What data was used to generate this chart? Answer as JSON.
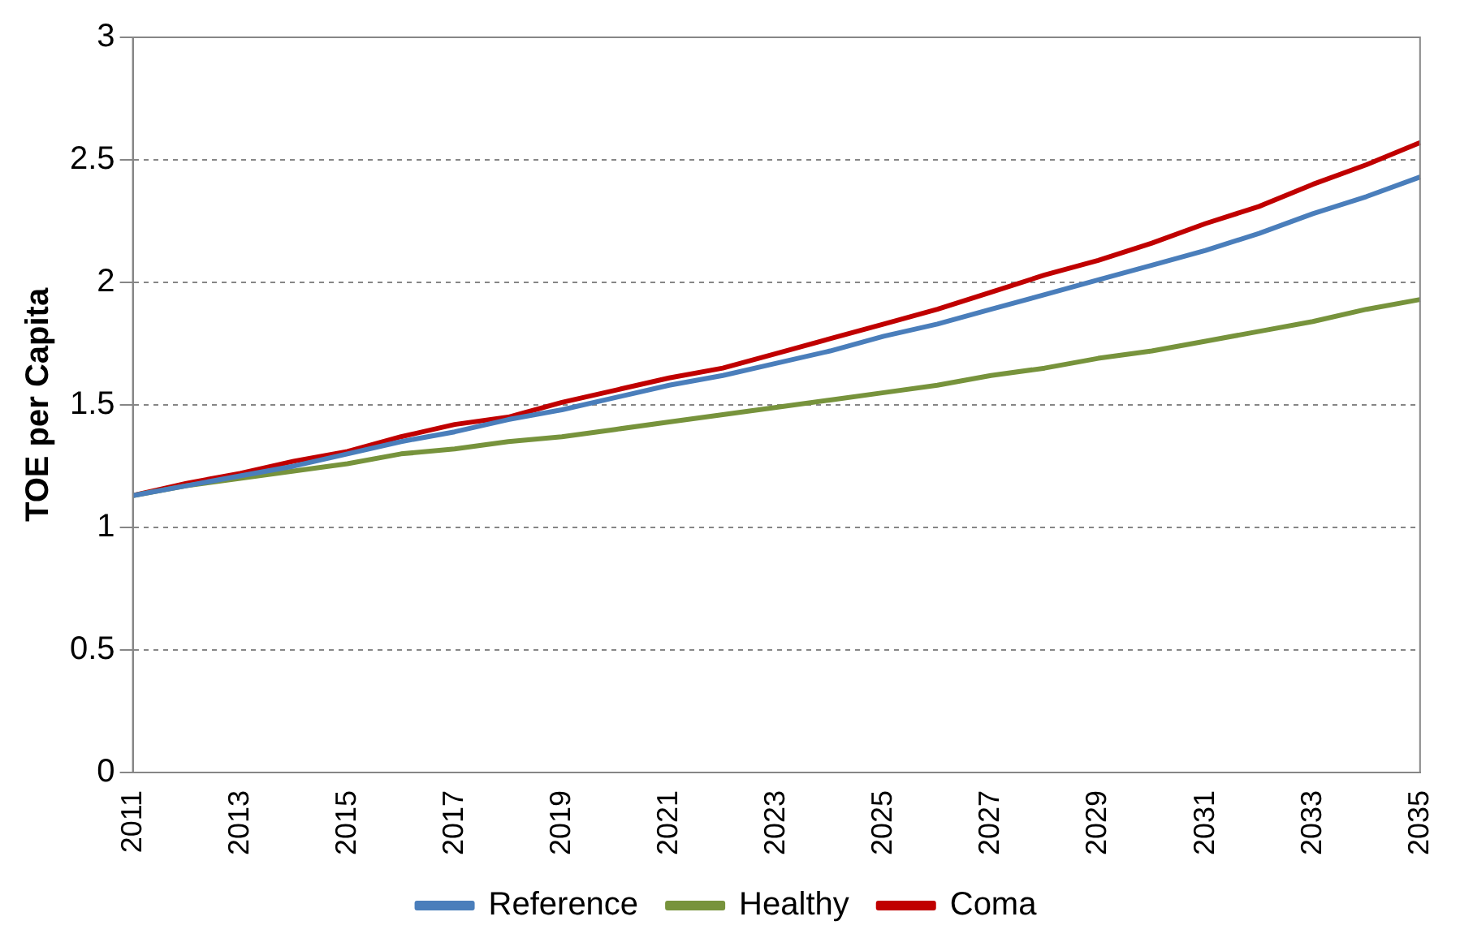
{
  "chart_data": {
    "type": "line",
    "ylabel": "TOE per Capita",
    "categories": [
      "2011",
      null,
      "2013",
      null,
      "2015",
      null,
      "2017",
      null,
      "2019",
      null,
      "2021",
      null,
      "2023",
      null,
      "2025",
      null,
      "2027",
      null,
      "2029",
      null,
      "2031",
      null,
      "2033",
      null,
      "2035"
    ],
    "series": [
      {
        "name": "Reference",
        "color": "#4a7ebb",
        "values": [
          1.13,
          1.17,
          1.21,
          1.25,
          1.3,
          1.35,
          1.39,
          1.44,
          1.48,
          1.53,
          1.58,
          1.62,
          1.67,
          1.72,
          1.78,
          1.83,
          1.89,
          1.95,
          2.01,
          2.07,
          2.13,
          2.2,
          2.28,
          2.35,
          2.43
        ]
      },
      {
        "name": "Healthy",
        "color": "#77933c",
        "values": [
          1.13,
          1.17,
          1.2,
          1.23,
          1.26,
          1.3,
          1.32,
          1.35,
          1.37,
          1.4,
          1.43,
          1.46,
          1.49,
          1.52,
          1.55,
          1.58,
          1.62,
          1.65,
          1.69,
          1.72,
          1.76,
          1.8,
          1.84,
          1.89,
          1.93
        ]
      },
      {
        "name": "Coma",
        "color": "#c00000",
        "values": [
          1.13,
          1.18,
          1.22,
          1.27,
          1.31,
          1.37,
          1.42,
          1.45,
          1.51,
          1.56,
          1.61,
          1.65,
          1.71,
          1.77,
          1.83,
          1.89,
          1.96,
          2.03,
          2.09,
          2.16,
          2.24,
          2.31,
          2.4,
          2.48,
          2.57
        ]
      }
    ],
    "ylim": [
      0,
      3
    ],
    "yticks": [
      0,
      0.5,
      1,
      1.5,
      2,
      2.5,
      3
    ],
    "grid": "y",
    "legend": "bottom",
    "marker": "none",
    "line_style": "solid"
  }
}
